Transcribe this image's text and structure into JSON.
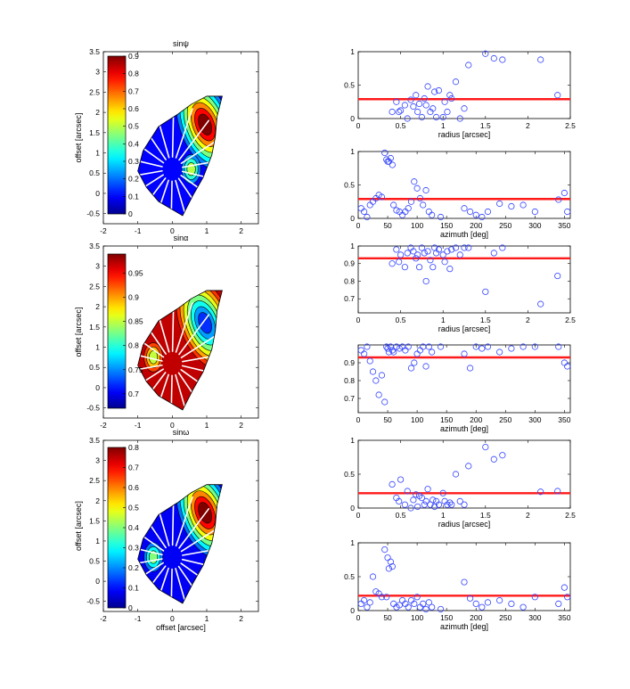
{
  "chart_data": [
    {
      "id": "sinpsi-map",
      "type": "heatmap",
      "title": "sinψ",
      "xlabel": "",
      "ylabel": "offset [arcsec]",
      "xlim": [
        -2,
        2.5
      ],
      "ylim": [
        -0.75,
        3.5
      ],
      "xticks": [
        -2,
        -1,
        0,
        1,
        2
      ],
      "yticks": [
        -0.5,
        0,
        0.5,
        1,
        1.5,
        2,
        2.5,
        3,
        3.5
      ],
      "colorbar": {
        "min": 0,
        "max": 0.9,
        "ticks": [
          0,
          0.1,
          0.2,
          0.3,
          0.4,
          0.5,
          0.6,
          0.7,
          0.8,
          0.9
        ]
      },
      "hotspot": {
        "x": 0.95,
        "y": 1.7
      },
      "hotspot2": {
        "x": 0.55,
        "y": 0.6
      },
      "peak_value": 0.9,
      "background_value": 0.1,
      "hotspot2_value": 0.5
    },
    {
      "id": "sinpsi-radius",
      "type": "scatter",
      "title": "",
      "xlabel": "radius [arcsec]",
      "ylabel": "",
      "xlim": [
        0,
        2.5
      ],
      "ylim": [
        0,
        1
      ],
      "xticks": [
        0,
        0.5,
        1,
        1.5,
        2,
        2.5
      ],
      "yticks": [
        0,
        0.5,
        1
      ],
      "reference": 0.29,
      "x": [
        0.4,
        0.45,
        0.48,
        0.5,
        0.55,
        0.58,
        0.62,
        0.65,
        0.68,
        0.7,
        0.72,
        0.75,
        0.78,
        0.8,
        0.82,
        0.85,
        0.88,
        0.9,
        0.92,
        0.95,
        1.0,
        1.02,
        1.05,
        1.08,
        1.1,
        1.15,
        1.2,
        1.25,
        1.3,
        1.5,
        1.6,
        1.7,
        2.15,
        2.35
      ],
      "y": [
        0.1,
        0.25,
        0.1,
        0.12,
        0.2,
        0.0,
        0.28,
        0.18,
        0.35,
        0.1,
        0.22,
        0.02,
        0.3,
        0.2,
        0.48,
        0.1,
        0.15,
        0.4,
        0.02,
        0.42,
        0.02,
        0.25,
        0.1,
        0.35,
        0.3,
        0.55,
        0.0,
        0.15,
        0.8,
        0.97,
        0.9,
        0.88,
        0.88,
        0.35
      ]
    },
    {
      "id": "sinpsi-azimuth",
      "type": "scatter",
      "title": "",
      "xlabel": "azimuth [deg]",
      "ylabel": "",
      "xlim": [
        0,
        360
      ],
      "ylim": [
        0,
        1
      ],
      "xticks": [
        0,
        50,
        100,
        150,
        200,
        250,
        300,
        350
      ],
      "yticks": [
        0,
        0.5,
        1
      ],
      "reference": 0.29,
      "x": [
        5,
        10,
        15,
        20,
        25,
        30,
        35,
        40,
        45,
        48,
        50,
        52,
        55,
        58,
        60,
        65,
        70,
        75,
        80,
        85,
        90,
        95,
        100,
        105,
        110,
        115,
        120,
        125,
        140,
        180,
        190,
        200,
        210,
        220,
        240,
        260,
        280,
        300,
        340,
        350,
        355
      ],
      "y": [
        0.15,
        0.1,
        0.02,
        0.2,
        0.25,
        0.3,
        0.35,
        0.32,
        0.98,
        0.88,
        0.85,
        0.85,
        0.9,
        0.8,
        0.2,
        0.12,
        0.1,
        0.05,
        0.1,
        0.15,
        0.25,
        0.55,
        0.45,
        0.3,
        0.2,
        0.42,
        0.1,
        0.05,
        0.02,
        0.15,
        0.1,
        0.05,
        0.02,
        0.1,
        0.22,
        0.18,
        0.2,
        0.1,
        0.28,
        0.38,
        0.1
      ]
    },
    {
      "id": "sinalpha-map",
      "type": "heatmap",
      "title": "sinα",
      "xlabel": "",
      "ylabel": "offset [arcsec]",
      "xlim": [
        -2,
        2.5
      ],
      "ylim": [
        -0.75,
        3.5
      ],
      "xticks": [
        -2,
        -1,
        0,
        1,
        2
      ],
      "yticks": [
        -0.5,
        0,
        0.5,
        1,
        1.5,
        2,
        2.5,
        3,
        3.5
      ],
      "colorbar": {
        "min": 0.67,
        "max": 0.99,
        "ticks": [
          0.7,
          0.75,
          0.8,
          0.85,
          0.9,
          0.95
        ]
      },
      "hotspot": {
        "x": 0.95,
        "y": 1.6
      },
      "hotspot2": {
        "x": -0.55,
        "y": 0.75
      },
      "peak_value": 0.72,
      "background_value": 0.97,
      "hotspot2_value": 0.85
    },
    {
      "id": "sinalpha-radius",
      "type": "scatter",
      "title": "",
      "xlabel": "radius [arcsec]",
      "ylabel": "",
      "xlim": [
        0,
        2.5
      ],
      "ylim": [
        0.62,
        1
      ],
      "xticks": [
        0,
        0.5,
        1,
        1.5,
        2,
        2.5
      ],
      "yticks": [
        0.7,
        0.8,
        0.9,
        1
      ],
      "reference": 0.93,
      "x": [
        0.4,
        0.45,
        0.48,
        0.5,
        0.55,
        0.58,
        0.62,
        0.65,
        0.68,
        0.7,
        0.72,
        0.75,
        0.78,
        0.8,
        0.82,
        0.85,
        0.88,
        0.9,
        0.92,
        0.95,
        1.0,
        1.02,
        1.05,
        1.08,
        1.1,
        1.15,
        1.2,
        1.25,
        1.3,
        1.5,
        1.6,
        1.7,
        2.15,
        2.35
      ],
      "y": [
        0.9,
        0.98,
        0.91,
        0.95,
        0.88,
        0.96,
        0.99,
        0.97,
        0.93,
        0.95,
        0.88,
        0.99,
        0.96,
        0.8,
        0.97,
        0.92,
        0.88,
        0.99,
        0.96,
        0.98,
        0.95,
        0.91,
        0.97,
        0.87,
        0.98,
        0.99,
        0.95,
        0.99,
        0.99,
        0.74,
        0.96,
        0.99,
        0.67,
        0.83
      ]
    },
    {
      "id": "sinalpha-azimuth",
      "type": "scatter",
      "title": "",
      "xlabel": "azimuth [deg]",
      "ylabel": "",
      "xlim": [
        0,
        360
      ],
      "ylim": [
        0.62,
        1
      ],
      "xticks": [
        0,
        50,
        100,
        150,
        200,
        250,
        300,
        350
      ],
      "yticks": [
        0.7,
        0.8,
        0.9
      ],
      "reference": 0.93,
      "x": [
        5,
        10,
        15,
        20,
        25,
        30,
        35,
        40,
        45,
        48,
        50,
        52,
        55,
        58,
        60,
        65,
        70,
        75,
        80,
        85,
        90,
        95,
        100,
        105,
        110,
        115,
        120,
        125,
        140,
        180,
        190,
        200,
        210,
        220,
        240,
        260,
        280,
        300,
        340,
        350,
        355
      ],
      "y": [
        0.97,
        0.95,
        0.99,
        0.91,
        0.85,
        0.8,
        0.72,
        0.83,
        0.68,
        0.99,
        0.98,
        0.96,
        0.99,
        0.97,
        0.96,
        0.99,
        0.98,
        0.99,
        0.97,
        0.99,
        0.87,
        0.9,
        0.95,
        0.97,
        0.99,
        0.88,
        0.99,
        0.96,
        0.99,
        0.95,
        0.87,
        0.99,
        0.98,
        0.99,
        0.96,
        0.98,
        0.99,
        0.99,
        0.99,
        0.9,
        0.88
      ]
    },
    {
      "id": "sinomega-map",
      "type": "heatmap",
      "title": "sinω",
      "xlabel": "offset [arcsec]",
      "ylabel": "offset [arcsec]",
      "xlim": [
        -2,
        2.5
      ],
      "ylim": [
        -0.75,
        3.5
      ],
      "xticks": [
        -2,
        -1,
        0,
        1,
        2
      ],
      "yticks": [
        -0.5,
        0,
        0.5,
        1,
        1.5,
        2,
        2.5,
        3,
        3.5
      ],
      "colorbar": {
        "min": 0,
        "max": 0.8,
        "ticks": [
          0,
          0.1,
          0.2,
          0.3,
          0.4,
          0.5,
          0.6,
          0.7,
          0.8
        ]
      },
      "hotspot": {
        "x": 0.95,
        "y": 1.7
      },
      "hotspot2": {
        "x": -0.55,
        "y": 0.6
      },
      "peak_value": 0.8,
      "background_value": 0.08,
      "hotspot2_value": 0.4
    },
    {
      "id": "sinomega-radius",
      "type": "scatter",
      "title": "",
      "xlabel": "radius [arcsec]",
      "ylabel": "",
      "xlim": [
        0,
        2.5
      ],
      "ylim": [
        0,
        1
      ],
      "xticks": [
        0,
        0.5,
        1,
        1.5,
        2,
        2.5
      ],
      "yticks": [
        0,
        0.5,
        1
      ],
      "reference": 0.22,
      "x": [
        0.4,
        0.45,
        0.48,
        0.5,
        0.55,
        0.58,
        0.62,
        0.65,
        0.68,
        0.7,
        0.72,
        0.75,
        0.78,
        0.8,
        0.82,
        0.85,
        0.88,
        0.9,
        0.92,
        0.95,
        1.0,
        1.02,
        1.05,
        1.08,
        1.1,
        1.15,
        1.2,
        1.25,
        1.3,
        1.5,
        1.6,
        1.7,
        2.15,
        2.35
      ],
      "y": [
        0.35,
        0.15,
        0.1,
        0.42,
        0.05,
        0.25,
        0.0,
        0.12,
        0.2,
        0.02,
        0.18,
        0.15,
        0.05,
        0.1,
        0.28,
        0.05,
        0.12,
        0.02,
        0.1,
        0.05,
        0.22,
        0.1,
        0.05,
        0.08,
        0.05,
        0.5,
        0.1,
        0.05,
        0.62,
        0.9,
        0.72,
        0.78,
        0.24,
        0.25
      ]
    },
    {
      "id": "sinomega-azimuth",
      "type": "scatter",
      "title": "",
      "xlabel": "azimuth [deg]",
      "ylabel": "",
      "xlim": [
        0,
        360
      ],
      "ylim": [
        0,
        1
      ],
      "xticks": [
        0,
        50,
        100,
        150,
        200,
        250,
        300,
        350
      ],
      "yticks": [
        0,
        0.5,
        1
      ],
      "reference": 0.22,
      "x": [
        5,
        10,
        15,
        20,
        25,
        30,
        35,
        40,
        45,
        48,
        50,
        52,
        55,
        58,
        60,
        65,
        70,
        75,
        80,
        85,
        90,
        95,
        100,
        105,
        110,
        115,
        120,
        125,
        140,
        180,
        190,
        200,
        210,
        220,
        240,
        260,
        280,
        300,
        340,
        350,
        355
      ],
      "y": [
        0.1,
        0.15,
        0.05,
        0.12,
        0.5,
        0.28,
        0.25,
        0.2,
        0.9,
        0.2,
        0.78,
        0.62,
        0.72,
        0.65,
        0.1,
        0.05,
        0.08,
        0.15,
        0.1,
        0.05,
        0.15,
        0.1,
        0.2,
        0.05,
        0.1,
        0.02,
        0.12,
        0.05,
        0.02,
        0.42,
        0.18,
        0.1,
        0.05,
        0.12,
        0.15,
        0.1,
        0.05,
        0.2,
        0.1,
        0.34,
        0.2
      ]
    }
  ]
}
